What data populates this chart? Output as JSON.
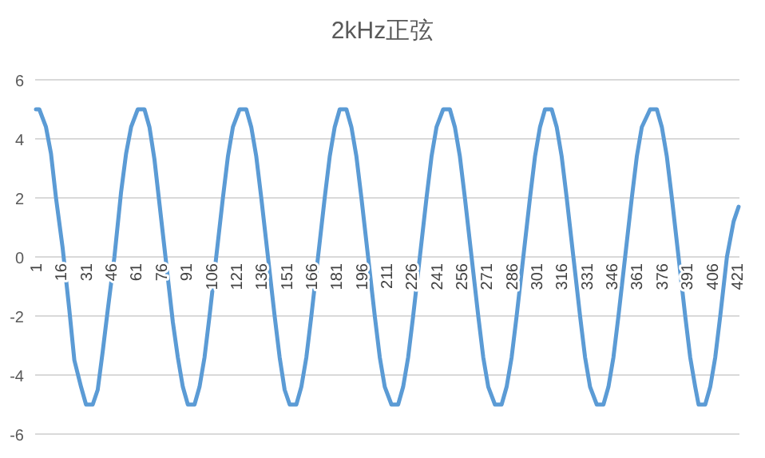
{
  "chart_data": {
    "type": "line",
    "title": "2kHz正弦",
    "x": [
      1,
      3,
      7,
      10,
      13,
      17,
      21,
      24,
      28,
      31,
      35,
      38,
      41,
      44,
      48,
      52,
      55,
      58,
      62,
      66,
      69,
      72,
      75,
      79,
      83,
      86,
      89,
      92,
      96,
      99,
      102,
      105,
      109,
      113,
      116,
      119,
      123,
      127,
      130,
      133,
      136,
      140,
      144,
      147,
      150,
      153,
      157,
      160,
      163,
      166,
      170,
      174,
      177,
      180,
      183,
      187,
      190,
      193,
      196,
      200,
      204,
      207,
      210,
      214,
      218,
      221,
      224,
      227,
      231,
      235,
      238,
      241,
      245,
      249,
      252,
      255,
      258,
      262,
      266,
      269,
      272,
      276,
      280,
      283,
      286,
      289,
      293,
      297,
      300,
      303,
      306,
      310,
      313,
      316,
      319,
      323,
      327,
      330,
      333,
      337,
      341,
      344,
      347,
      350,
      354,
      358,
      361,
      364,
      369,
      373,
      376,
      379,
      382,
      386,
      390,
      393,
      396,
      398,
      402,
      405,
      408,
      411,
      415,
      419,
      422
    ],
    "series": [
      {
        "color": "#5b9bd5",
        "values": [
          5,
          5,
          4.4,
          3.5,
          2,
          0.3,
          -1.8,
          -3.5,
          -4.4,
          -5,
          -5,
          -4.5,
          -3.2,
          -1.8,
          0,
          2.2,
          3.5,
          4.4,
          5,
          5,
          4.4,
          3.3,
          1.8,
          -0.2,
          -2.2,
          -3.4,
          -4.4,
          -5,
          -5,
          -4.4,
          -3.4,
          -2,
          0,
          2,
          3.4,
          4.4,
          5,
          5,
          4.4,
          3.4,
          2,
          0,
          -2,
          -3.4,
          -4.5,
          -5,
          -5,
          -4.4,
          -3.4,
          -2,
          0,
          2,
          3.4,
          4.4,
          5,
          5,
          4.4,
          3.4,
          2,
          0,
          -2,
          -3.4,
          -4.4,
          -5,
          -5,
          -4.4,
          -3.4,
          -2,
          0,
          2,
          3.4,
          4.4,
          5,
          5,
          4.4,
          3.4,
          2,
          0,
          -2,
          -3.4,
          -4.4,
          -5,
          -5,
          -4.4,
          -3.4,
          -2,
          0,
          2,
          3.4,
          4.4,
          5,
          5,
          4.4,
          3.4,
          2,
          0,
          -2,
          -3.4,
          -4.4,
          -5,
          -5,
          -4.4,
          -3.4,
          -2,
          0,
          2,
          3.4,
          4.4,
          5,
          5,
          4.4,
          3.4,
          2,
          0,
          -2,
          -3.4,
          -4.4,
          -5,
          -5,
          -4.4,
          -3.4,
          -2,
          0,
          1.2,
          1.7
        ]
      }
    ],
    "xlim": [
      0.5,
      422.5
    ],
    "xticks": [
      1,
      16,
      31,
      46,
      61,
      76,
      91,
      106,
      121,
      136,
      151,
      166,
      181,
      196,
      211,
      226,
      241,
      256,
      271,
      286,
      301,
      316,
      331,
      346,
      361,
      376,
      391,
      406,
      421
    ],
    "ylim": [
      -6,
      6
    ],
    "yticks": [
      -6,
      -4,
      -2,
      0,
      2,
      4,
      6
    ],
    "grid": "y"
  }
}
